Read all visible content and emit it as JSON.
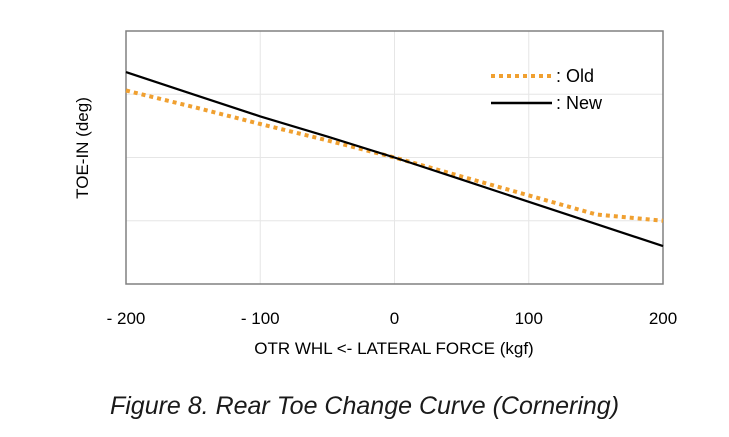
{
  "caption": "Figure 8. Rear Toe Change Curve (Cornering)",
  "chart_data": {
    "type": "line",
    "title": "",
    "xlabel": "OTR WHL <-  LATERAL FORCE (kgf)",
    "ylabel": "TOE-IN (deg)",
    "xlim": [
      -200,
      200
    ],
    "ylim": [
      -2,
      2
    ],
    "x_ticks": [
      -200,
      -100,
      0,
      100,
      200
    ],
    "x_tick_labels": [
      "- 200",
      "- 100",
      "0",
      "100",
      "200"
    ],
    "y_ticks": [
      -1,
      0,
      1
    ],
    "y_tick_labels": [],
    "grid": true,
    "legend_position": "top-right",
    "series": [
      {
        "name": ": Old",
        "style": "dotted",
        "color": "#f0a030",
        "x": [
          -200,
          -150,
          -100,
          -50,
          0,
          50,
          100,
          150,
          200
        ],
        "y": [
          1.06,
          0.8,
          0.53,
          0.27,
          0.0,
          -0.3,
          -0.6,
          -0.9,
          -1.0
        ]
      },
      {
        "name": ": New",
        "style": "solid",
        "color": "#000000",
        "x": [
          -200,
          -150,
          -100,
          -50,
          0,
          50,
          100,
          150,
          200
        ],
        "y": [
          1.35,
          1.0,
          0.65,
          0.33,
          0.0,
          -0.35,
          -0.7,
          -1.05,
          -1.4
        ]
      }
    ]
  }
}
